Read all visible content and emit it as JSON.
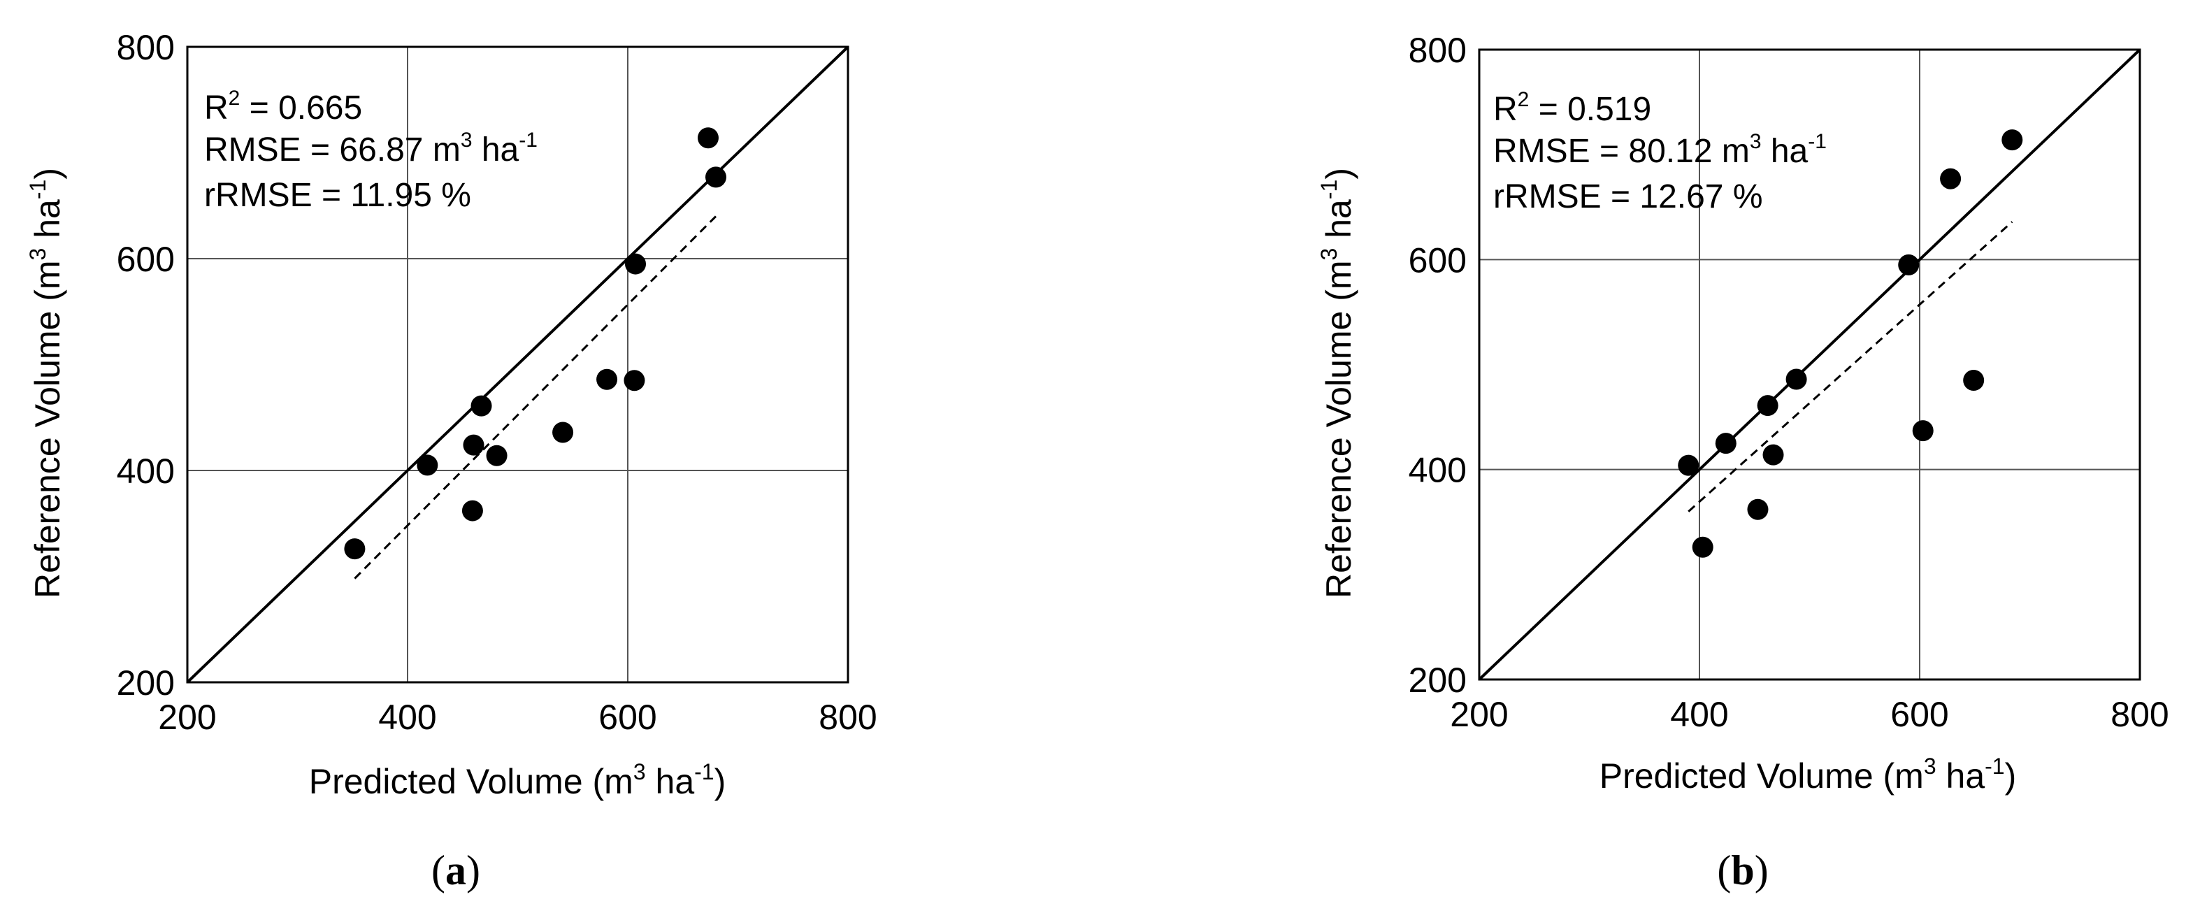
{
  "chart_data": [
    {
      "type": "scatter",
      "caption": "(a)",
      "caption_letter": "a",
      "xlabel": "Predicted Volume (m3 ha-1)",
      "xlabel_parts": {
        "pre": "Predicted Volume (m",
        "sup1": "3",
        "mid": "  ha",
        "sup2": "-1",
        "post": ")"
      },
      "ylabel": "Reference Volume (m3 ha-1)",
      "ylabel_parts": {
        "pre": "Reference Volume (m",
        "sup1": "3",
        "mid": " ha",
        "sup2": "-1",
        "post": ")"
      },
      "xlim": [
        200,
        800
      ],
      "ylim": [
        200,
        800
      ],
      "x_ticks": [
        "200",
        "400",
        "600",
        "800"
      ],
      "y_ticks": [
        "200",
        "400",
        "600",
        "800"
      ],
      "grid": true,
      "annotations": {
        "r2": {
          "pre": "R",
          "sup": "2",
          "post": " = 0.665"
        },
        "rmse": {
          "pre": "RMSE = 66.87 m",
          "sup1": "3",
          "mid": " ha",
          "sup2": "-1",
          "post": ""
        },
        "rrmse": {
          "text": "rRMSE = 11.95 %"
        }
      },
      "points": [
        {
          "x": 352,
          "y": 326
        },
        {
          "x": 418,
          "y": 405
        },
        {
          "x": 459,
          "y": 362
        },
        {
          "x": 460,
          "y": 424
        },
        {
          "x": 467,
          "y": 461
        },
        {
          "x": 481,
          "y": 414
        },
        {
          "x": 541,
          "y": 436
        },
        {
          "x": 581,
          "y": 486
        },
        {
          "x": 606,
          "y": 485
        },
        {
          "x": 607,
          "y": 595
        },
        {
          "x": 673,
          "y": 714
        },
        {
          "x": 680,
          "y": 677
        }
      ],
      "one_to_one_line": {
        "x": [
          200,
          800
        ],
        "y": [
          200,
          800
        ]
      },
      "regression_line": {
        "x": [
          352,
          680
        ],
        "y": [
          298,
          640
        ]
      }
    },
    {
      "type": "scatter",
      "caption": "(b)",
      "caption_letter": "b",
      "xlabel": "Predicted Volume (m3 ha-1)",
      "xlabel_parts": {
        "pre": "Predicted Volume (m",
        "sup1": "3",
        "mid": "  ha",
        "sup2": "-1",
        "post": ")"
      },
      "ylabel": "Reference Volume (m3 ha-1)",
      "ylabel_parts": {
        "pre": "Reference Volume (m",
        "sup1": "3",
        "mid": " ha",
        "sup2": "-1",
        "post": ")"
      },
      "xlim": [
        200,
        800
      ],
      "ylim": [
        200,
        800
      ],
      "x_ticks": [
        "200",
        "400",
        "600",
        "800"
      ],
      "y_ticks": [
        "200",
        "400",
        "600",
        "800"
      ],
      "grid": true,
      "annotations": {
        "r2": {
          "pre": "R",
          "sup": "2",
          "post": " = 0.519"
        },
        "rmse": {
          "pre": "RMSE = 80.12 m",
          "sup1": "3",
          "mid": " ha",
          "sup2": "-1",
          "post": ""
        },
        "rrmse": {
          "text": "rRMSE = 12.67 %"
        }
      },
      "points": [
        {
          "x": 390,
          "y": 404
        },
        {
          "x": 403,
          "y": 326
        },
        {
          "x": 424,
          "y": 425
        },
        {
          "x": 453,
          "y": 362
        },
        {
          "x": 462,
          "y": 461
        },
        {
          "x": 467,
          "y": 414
        },
        {
          "x": 488,
          "y": 486
        },
        {
          "x": 590,
          "y": 595
        },
        {
          "x": 603,
          "y": 437
        },
        {
          "x": 628,
          "y": 677
        },
        {
          "x": 649,
          "y": 485
        },
        {
          "x": 684,
          "y": 714
        }
      ],
      "one_to_one_line": {
        "x": [
          200,
          800
        ],
        "y": [
          200,
          800
        ]
      },
      "regression_line": {
        "x": [
          390,
          684
        ],
        "y": [
          360,
          636
        ]
      }
    }
  ]
}
